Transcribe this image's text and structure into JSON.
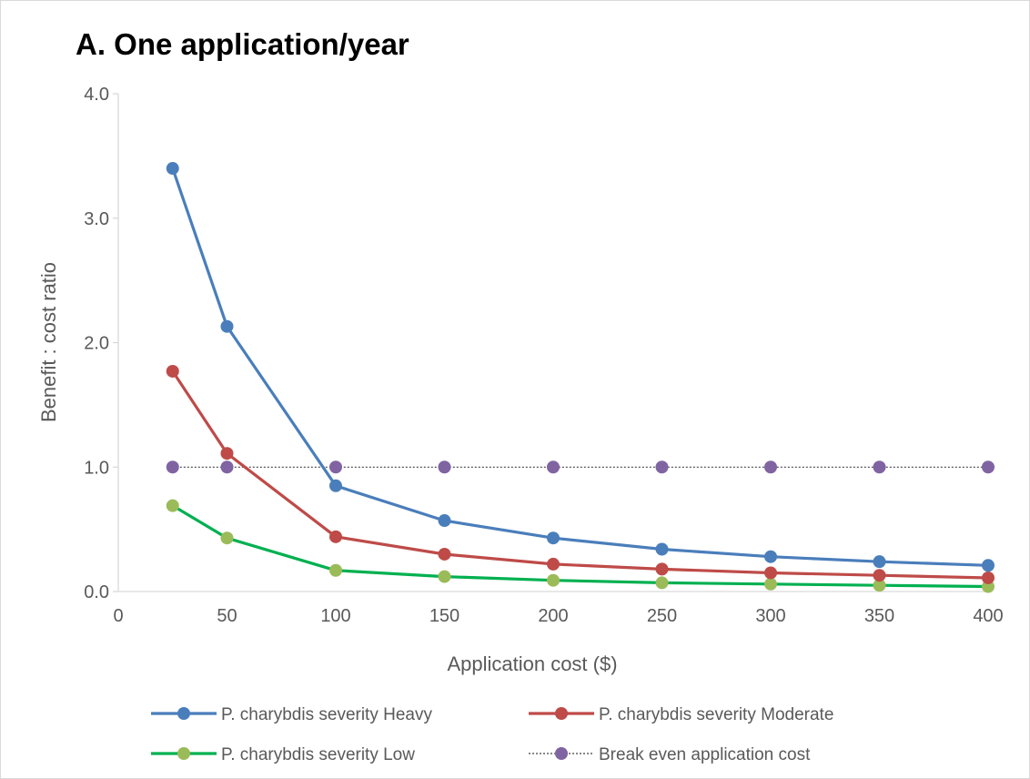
{
  "chart_data": {
    "type": "line",
    "title": "A. One application/year",
    "xlabel": "Application cost ($)",
    "ylabel": "Benefit : cost ratio",
    "x": [
      25,
      50,
      100,
      150,
      200,
      250,
      300,
      350,
      400
    ],
    "xlim": [
      0,
      400
    ],
    "ylim": [
      0,
      4.0
    ],
    "xticks": [
      0,
      50,
      100,
      150,
      200,
      250,
      300,
      350,
      400
    ],
    "yticks": [
      0.0,
      1.0,
      2.0,
      3.0,
      4.0
    ],
    "ytick_labels": [
      "0.0",
      "1.0",
      "2.0",
      "3.0",
      "4.0"
    ],
    "grid": false,
    "legend_position": "bottom",
    "series": [
      {
        "name": "P. charybdis severity Heavy",
        "color": "#4a7ebb",
        "style": "solid",
        "values": [
          3.4,
          2.13,
          0.85,
          0.57,
          0.43,
          0.34,
          0.28,
          0.24,
          0.21
        ]
      },
      {
        "name": "P. charybdis severity Moderate",
        "color": "#be4b48",
        "style": "solid",
        "values": [
          1.77,
          1.11,
          0.44,
          0.3,
          0.22,
          0.18,
          0.15,
          0.13,
          0.11
        ]
      },
      {
        "name": "P. charybdis severity Low",
        "color": "#00b050",
        "marker_color": "#9bbb59",
        "style": "solid",
        "values": [
          0.69,
          0.43,
          0.17,
          0.12,
          0.09,
          0.07,
          0.06,
          0.05,
          0.04
        ]
      },
      {
        "name": "Break even application cost",
        "color": "#404040",
        "marker_color": "#8064a2",
        "style": "dotted",
        "values": [
          1.0,
          1.0,
          1.0,
          1.0,
          1.0,
          1.0,
          1.0,
          1.0,
          1.0
        ]
      }
    ]
  }
}
